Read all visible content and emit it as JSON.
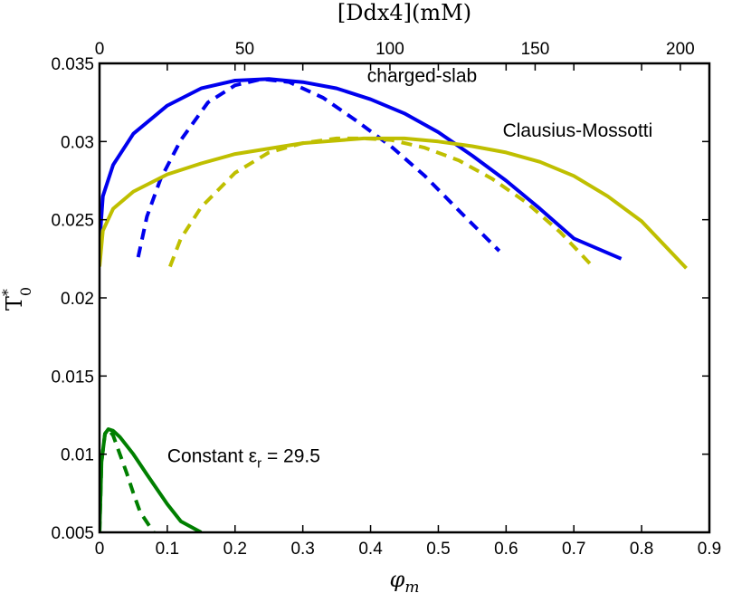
{
  "chart_data": {
    "type": "line",
    "title": "",
    "xlabel": "φm",
    "ylabel": "T0*",
    "top_xlabel": "[Ddx4](mM)",
    "xlim": [
      0,
      0.9
    ],
    "ylim": [
      0.005,
      0.035
    ],
    "top_xlim": [
      0,
      210
    ],
    "grid": false,
    "xticks": [
      "0",
      "0.1",
      "0.2",
      "0.3",
      "0.4",
      "0.5",
      "0.6",
      "0.7",
      "0.8",
      "0.9"
    ],
    "yticks": [
      "0.005",
      "0.01",
      "0.015",
      "0.02",
      "0.025",
      "0.03",
      "0.035"
    ],
    "top_xticks": [
      "0",
      "50",
      "100",
      "150",
      "200"
    ],
    "colors": {
      "blue": "#0000ee",
      "yellow": "#bfbf00",
      "green": "#007f00"
    },
    "series": [
      {
        "color": "blue",
        "dashed": false,
        "x": [
          0.0,
          0.005,
          0.02,
          0.05,
          0.1,
          0.15,
          0.2,
          0.25,
          0.3,
          0.35,
          0.4,
          0.45,
          0.5,
          0.55,
          0.6,
          0.65,
          0.7,
          0.77
        ],
        "y": [
          0.0235,
          0.0265,
          0.0285,
          0.0305,
          0.0323,
          0.0334,
          0.0339,
          0.034,
          0.0338,
          0.0334,
          0.0327,
          0.0318,
          0.0306,
          0.0291,
          0.0275,
          0.0257,
          0.0238,
          0.0225
        ]
      },
      {
        "color": "blue",
        "dashed": true,
        "x": [
          0.057,
          0.07,
          0.09,
          0.12,
          0.16,
          0.2,
          0.24,
          0.28,
          0.33,
          0.38,
          0.43,
          0.48,
          0.53,
          0.59
        ],
        "y": [
          0.0226,
          0.0252,
          0.0276,
          0.0301,
          0.0325,
          0.0336,
          0.034,
          0.0338,
          0.0328,
          0.0313,
          0.0297,
          0.0278,
          0.0256,
          0.023
        ]
      },
      {
        "color": "yellow",
        "dashed": false,
        "x": [
          0.0,
          0.005,
          0.02,
          0.05,
          0.1,
          0.15,
          0.2,
          0.3,
          0.39,
          0.45,
          0.5,
          0.55,
          0.6,
          0.65,
          0.7,
          0.75,
          0.8,
          0.866
        ],
        "y": [
          0.022,
          0.0243,
          0.0257,
          0.0268,
          0.0279,
          0.0286,
          0.0292,
          0.0299,
          0.0302,
          0.0302,
          0.03,
          0.0297,
          0.0293,
          0.0287,
          0.0278,
          0.0265,
          0.0249,
          0.0219
        ]
      },
      {
        "color": "yellow",
        "dashed": true,
        "x": [
          0.104,
          0.12,
          0.15,
          0.2,
          0.25,
          0.3,
          0.35,
          0.39,
          0.43,
          0.48,
          0.53,
          0.58,
          0.63,
          0.68,
          0.728
        ],
        "y": [
          0.022,
          0.0238,
          0.0258,
          0.028,
          0.0293,
          0.0299,
          0.0302,
          0.0302,
          0.0301,
          0.0296,
          0.0288,
          0.0276,
          0.0261,
          0.0242,
          0.022
        ]
      },
      {
        "color": "green",
        "dashed": false,
        "x": [
          0.0,
          0.003,
          0.008,
          0.013,
          0.02,
          0.03,
          0.05,
          0.07,
          0.1,
          0.12,
          0.15
        ],
        "y": [
          0.005,
          0.0095,
          0.0113,
          0.0116,
          0.0115,
          0.0111,
          0.01,
          0.0087,
          0.0068,
          0.0057,
          0.005
        ]
      },
      {
        "color": "green",
        "dashed": true,
        "x": [
          0.0,
          0.003,
          0.008,
          0.013,
          0.02,
          0.03,
          0.04,
          0.05,
          0.06,
          0.08
        ],
        "y": [
          0.005,
          0.0095,
          0.0113,
          0.0116,
          0.0112,
          0.01,
          0.0088,
          0.0075,
          0.0063,
          0.005
        ]
      }
    ],
    "annotations": [
      {
        "text": "charged-slab",
        "x": 0.395,
        "y": 0.0338
      },
      {
        "text": "Clausius-Mossotti",
        "x": 0.595,
        "y": 0.0303
      },
      {
        "text": "Constant εr = 29.5",
        "x": 0.1,
        "y": 0.0095
      }
    ]
  }
}
